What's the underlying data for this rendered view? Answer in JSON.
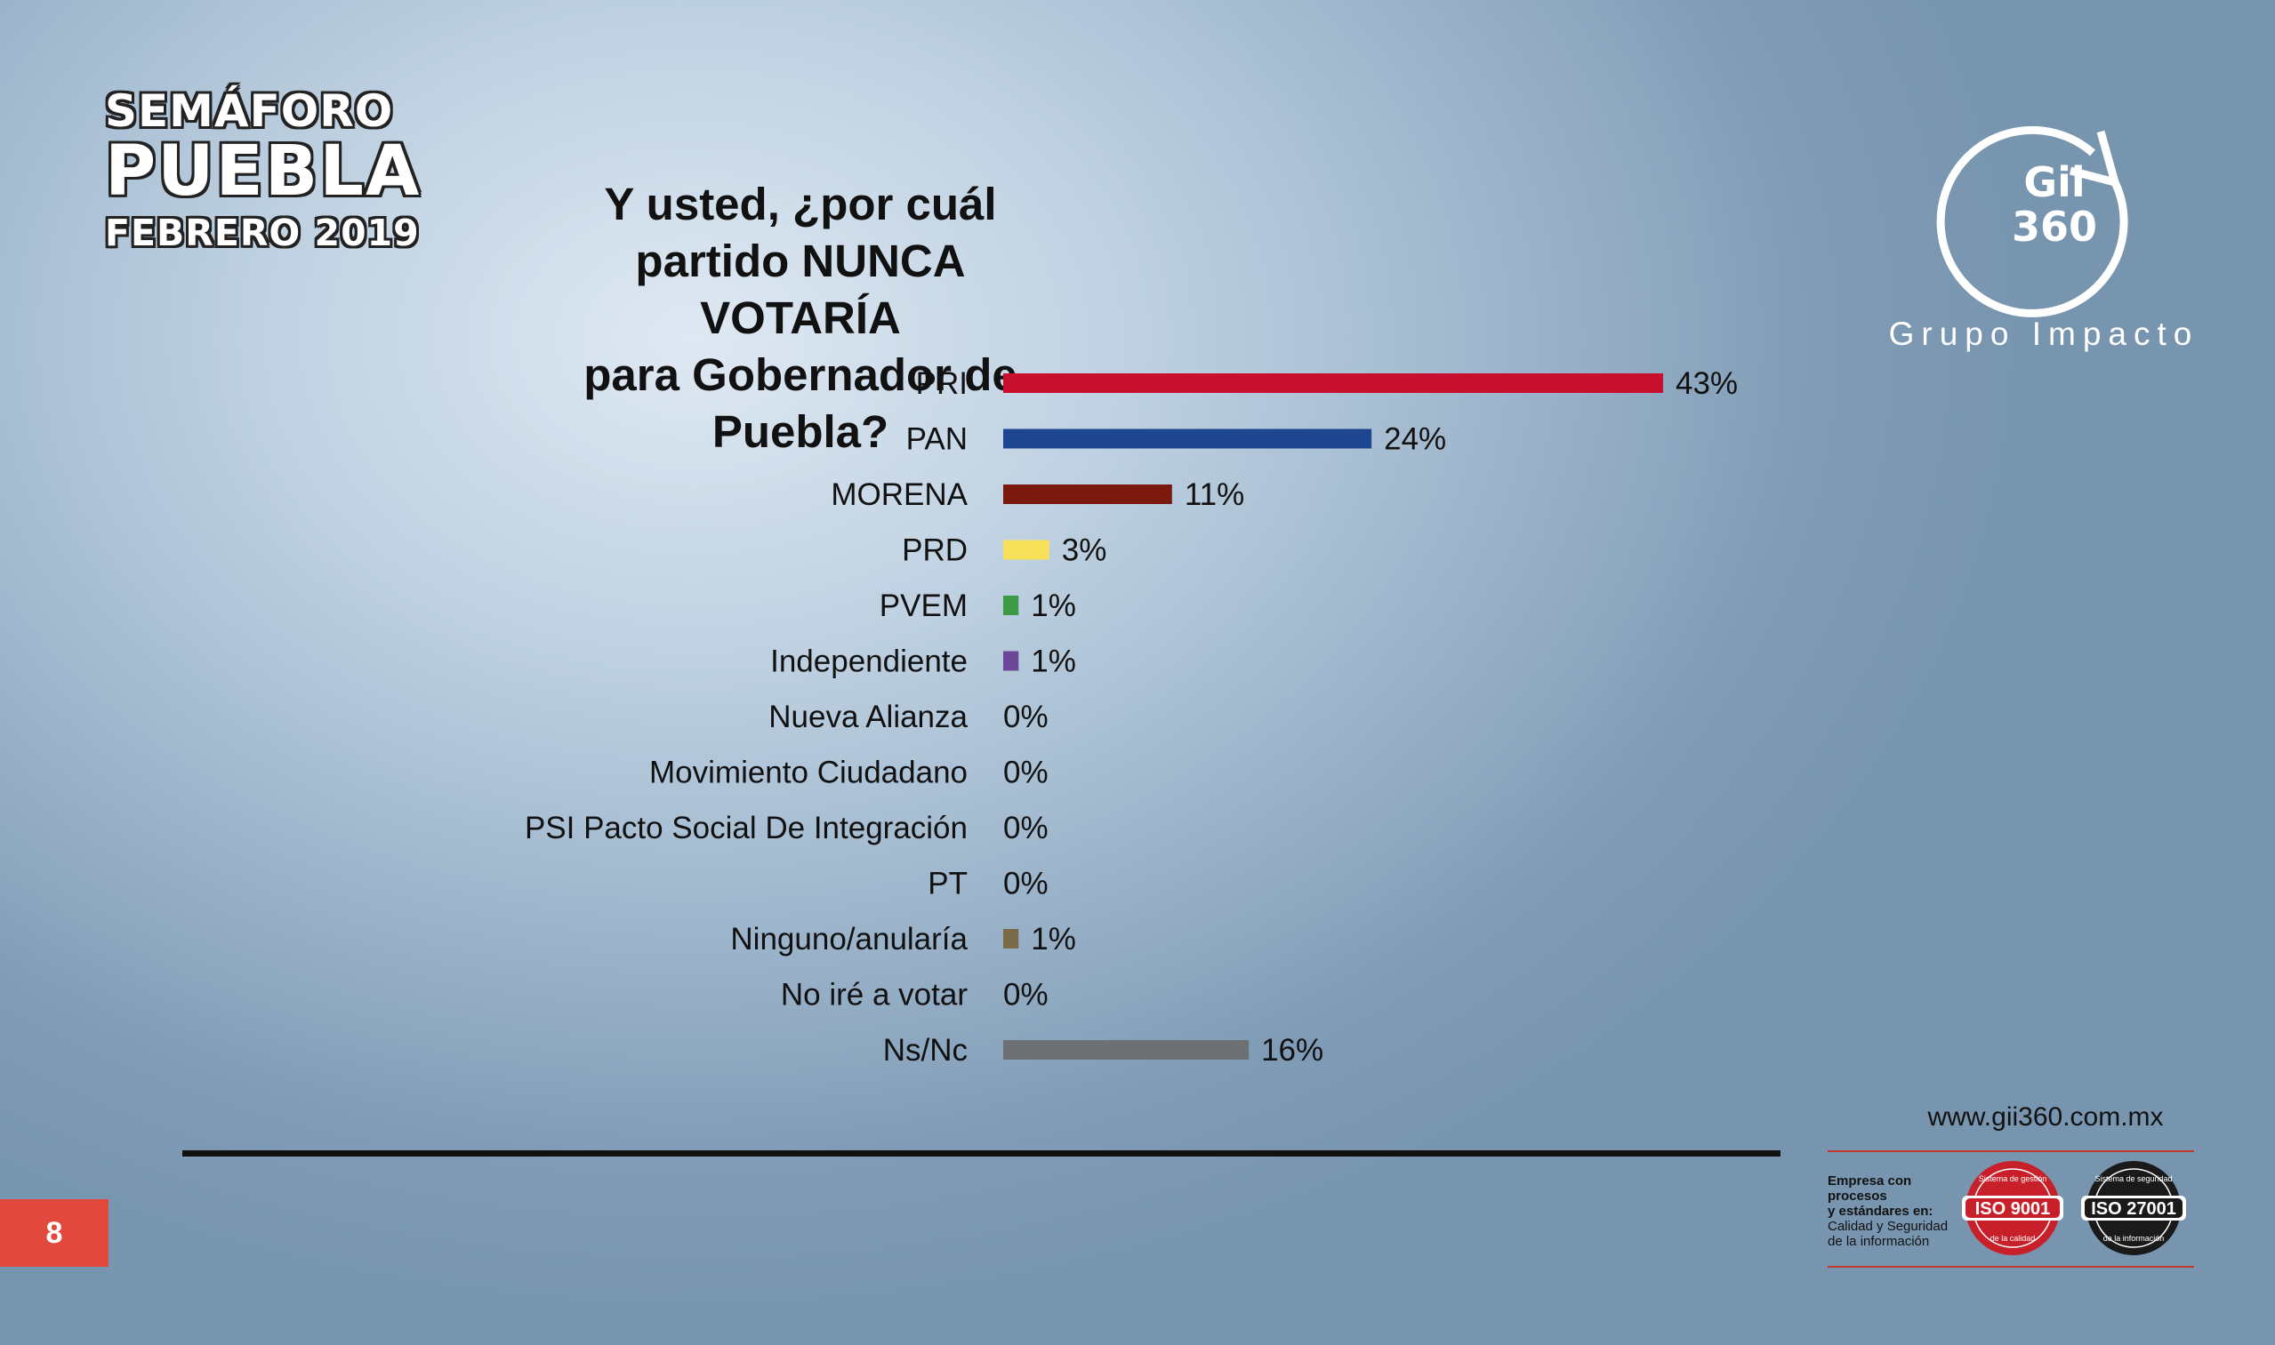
{
  "brand": {
    "line1": "SEMÁFORO",
    "line2": "PUEBLA",
    "line3": "FEBRERO 2019"
  },
  "title_line1": "Y usted, ¿por cuál partido NUNCA VOTARÍA",
  "title_line2": "para Gobernador de Puebla?",
  "logo": {
    "line1": "Gii",
    "line2": "360",
    "name": "Grupo Impacto",
    "icon": "circular-arrow-icon"
  },
  "chart_data": {
    "type": "bar",
    "orientation": "horizontal",
    "title": "Y usted, ¿por cuál partido NUNCA VOTARÍA para Gobernador de Puebla?",
    "categories": [
      "PRI",
      "PAN",
      "MORENA",
      "PRD",
      "PVEM",
      "Independiente",
      "Nueva Alianza",
      "Movimiento Ciudadano",
      "PSI Pacto Social De Integración",
      "PT",
      "Ninguno/anularía",
      "No iré a votar",
      "Ns/Nc"
    ],
    "values": [
      43,
      24,
      11,
      3,
      1,
      1,
      0,
      0,
      0,
      0,
      1,
      0,
      16
    ],
    "value_labels": [
      "43%",
      "24%",
      "11%",
      "3%",
      "1%",
      "1%",
      "0%",
      "0%",
      "0%",
      "0%",
      "1%",
      "0%",
      "16%"
    ],
    "colors": [
      "#c8102e",
      "#1f4690",
      "#7a1a0e",
      "#f7e15b",
      "#3c9a46",
      "#6b4596",
      "#777777",
      "#777777",
      "#777777",
      "#777777",
      "#7a6a48",
      "#777777",
      "#6e7173"
    ],
    "unit": "%",
    "xlim": [
      0,
      43
    ],
    "grid": false,
    "legend": "none"
  },
  "footer": {
    "page_number": "8",
    "url": "www.gii360.com.mx",
    "cert_lines": [
      "Empresa con procesos",
      "y estándares en:",
      "Calidad y Seguridad",
      "de la información"
    ],
    "iso1": {
      "label": "ISO 9001",
      "top": "Sistema de gestión",
      "bottom": "de la calidad",
      "color": "#c8202a"
    },
    "iso2": {
      "label": "ISO 27001",
      "top": "Sistema de seguridad",
      "bottom": "de la información",
      "color": "#1a1a1a"
    }
  }
}
